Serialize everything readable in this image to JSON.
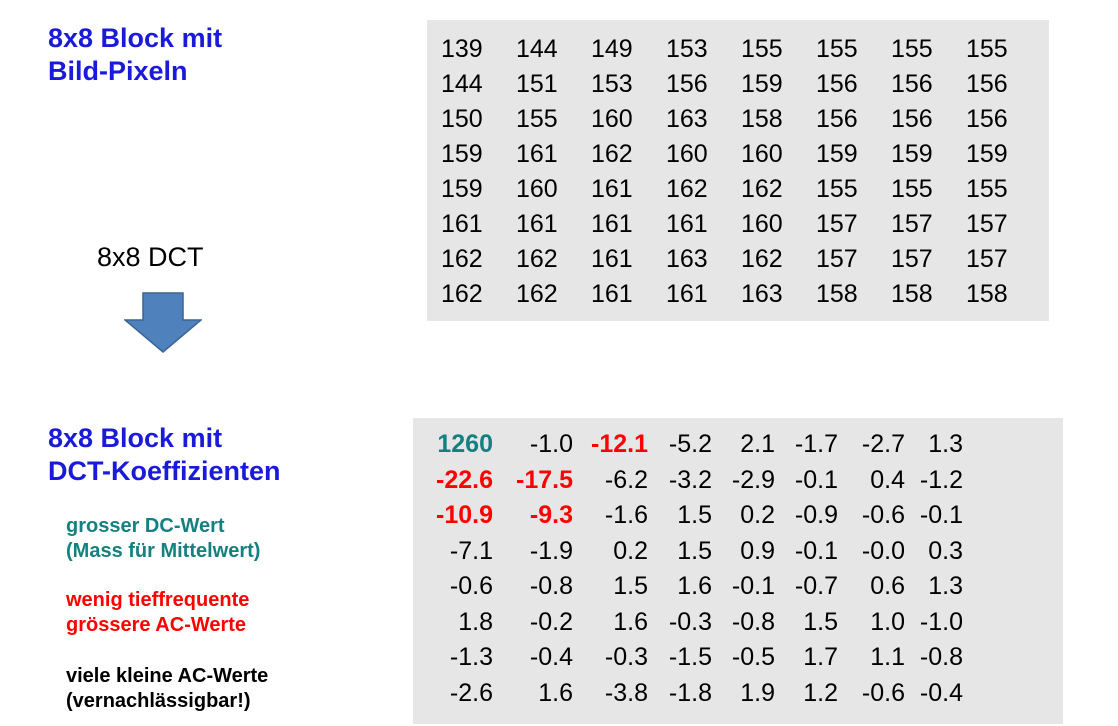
{
  "pixel_block": {
    "heading": [
      "8x8 Block mit",
      "Bild-Pixeln"
    ],
    "rows": [
      [
        "139",
        "144",
        "149",
        "153",
        "155",
        "155",
        "155",
        "155"
      ],
      [
        "144",
        "151",
        "153",
        "156",
        "159",
        "156",
        "156",
        "156"
      ],
      [
        "150",
        "155",
        "160",
        "163",
        "158",
        "156",
        "156",
        "156"
      ],
      [
        "159",
        "161",
        "162",
        "160",
        "160",
        "159",
        "159",
        "159"
      ],
      [
        "159",
        "160",
        "161",
        "162",
        "162",
        "155",
        "155",
        "155"
      ],
      [
        "161",
        "161",
        "161",
        "161",
        "160",
        "157",
        "157",
        "157"
      ],
      [
        "162",
        "162",
        "161",
        "163",
        "162",
        "157",
        "157",
        "157"
      ],
      [
        "162",
        "162",
        "161",
        "161",
        "163",
        "158",
        "158",
        "158"
      ]
    ]
  },
  "transform": {
    "label": "8x8 DCT",
    "arrow_icon": "arrow-down-icon",
    "arrow_color": "#4f81bd"
  },
  "dct_block": {
    "heading": [
      "8x8 Block mit",
      "DCT-Koeffizienten"
    ],
    "rows": [
      [
        "1260",
        "-1.0",
        "-12.1",
        "-5.2",
        "2.1",
        "-1.7",
        "-2.7",
        "1.3"
      ],
      [
        "-22.6",
        "-17.5",
        "-6.2",
        "-3.2",
        "-2.9",
        "-0.1",
        "0.4",
        "-1.2"
      ],
      [
        "-10.9",
        "-9.3",
        "-1.6",
        "1.5",
        "0.2",
        "-0.9",
        "-0.6",
        "-0.1"
      ],
      [
        "-7.1",
        "-1.9",
        "0.2",
        "1.5",
        "0.9",
        "-0.1",
        "-0.0",
        "0.3"
      ],
      [
        "-0.6",
        "-0.8",
        "1.5",
        "1.6",
        "-0.1",
        "-0.7",
        "0.6",
        "1.3"
      ],
      [
        "1.8",
        "-0.2",
        "1.6",
        "-0.3",
        "-0.8",
        "1.5",
        "1.0",
        "-1.0"
      ],
      [
        "-1.3",
        "-0.4",
        "-0.3",
        "-1.5",
        "-0.5",
        "1.7",
        "1.1",
        "-0.8"
      ],
      [
        "-2.6",
        "1.6",
        "-3.8",
        "-1.8",
        "1.9",
        "1.2",
        "-0.6",
        "-0.4"
      ]
    ],
    "dc_cells": [
      [
        0,
        0
      ]
    ],
    "large_ac_cells": [
      [
        0,
        2
      ],
      [
        1,
        0
      ],
      [
        1,
        1
      ],
      [
        2,
        0
      ],
      [
        2,
        1
      ]
    ]
  },
  "legend": {
    "dc": [
      "grosser DC-Wert",
      "(Mass für Mittelwert)"
    ],
    "large_ac": [
      "wenig tieffrequente",
      "grössere AC-Werte"
    ],
    "small_ac": [
      "viele kleine AC-Werte",
      "(vernachlässigbar!)"
    ]
  },
  "colors": {
    "heading": "#1a1adb",
    "dc": "#158080",
    "large_ac": "#ff0000",
    "small_ac": "#000000",
    "table_bg": "#e6e6e6"
  }
}
